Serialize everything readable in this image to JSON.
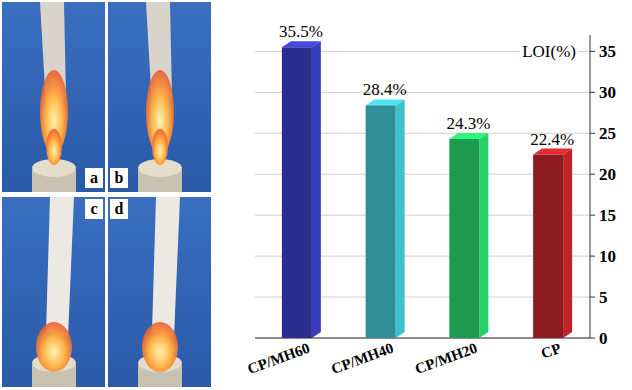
{
  "photos": {
    "labels": [
      "a",
      "b",
      "c",
      "d"
    ]
  },
  "chart_data": {
    "type": "bar",
    "y_label": "LOI(%)",
    "categories": [
      "CP/MH60",
      "CP/MH40",
      "CP/MH20",
      "CP"
    ],
    "values": [
      35.5,
      28.4,
      24.3,
      22.4
    ],
    "value_labels": [
      "35.5%",
      "28.4%",
      "24.3%",
      "22.4%"
    ],
    "colors": [
      "#2a2d8c",
      "#2f8e98",
      "#1c9a4e",
      "#8e1b1f"
    ],
    "ylim": [
      0,
      37
    ],
    "yticks": [
      0,
      5,
      10,
      15,
      20,
      25,
      30,
      35
    ],
    "grid": true,
    "data_labels": true
  }
}
